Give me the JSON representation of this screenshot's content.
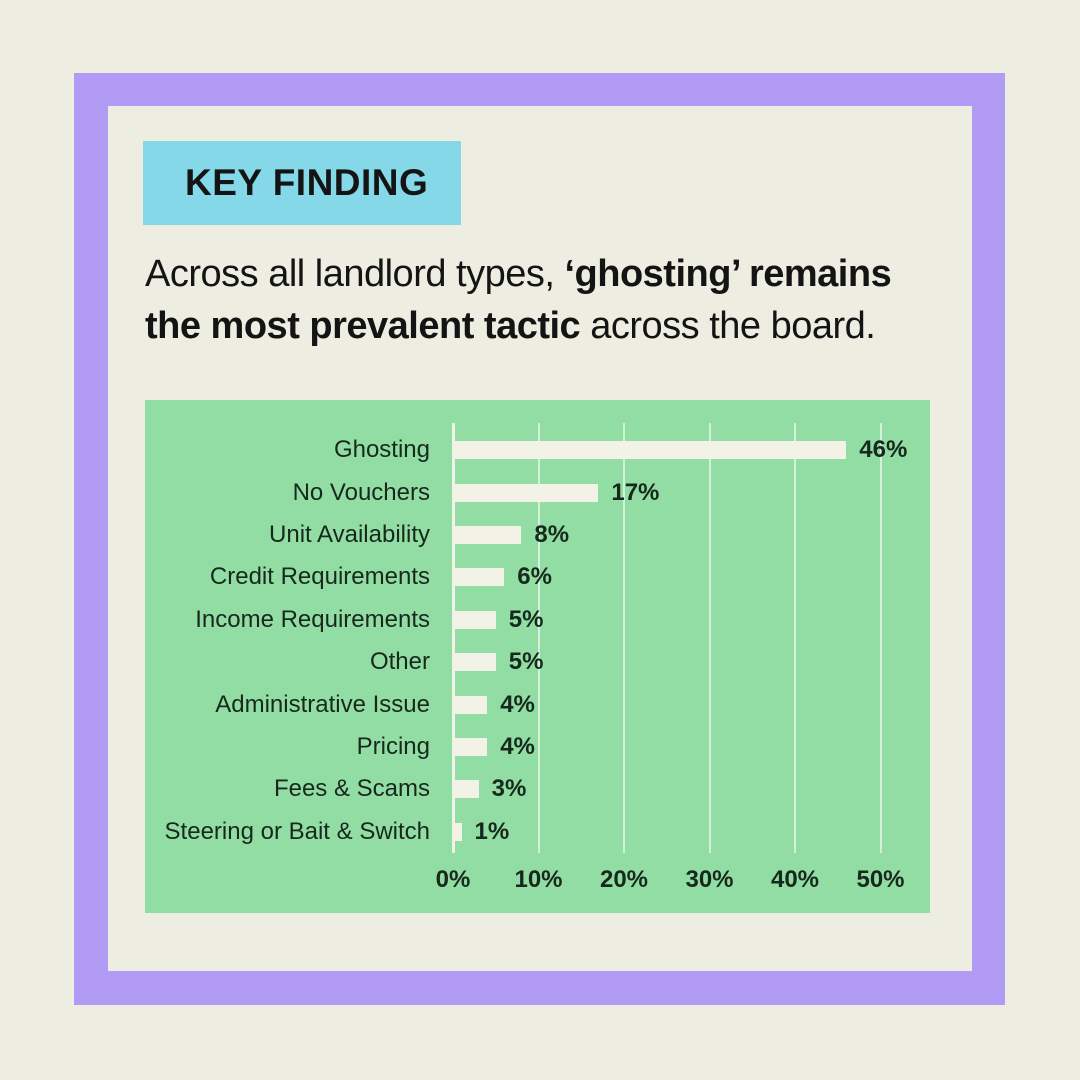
{
  "badge": {
    "label": "KEY FINDING"
  },
  "headline": {
    "line1_regular": "Across all landlord types, ",
    "line1_bold": "‘ghosting’ remains",
    "line2_bold": "the most prevalent tactic",
    "line2_regular": " across the board."
  },
  "colors": {
    "bg": "#eeede1",
    "frame": "#b29bf4",
    "badge": "#85d8e8",
    "chart-bg": "#92dda3",
    "bar": "#f3f2e6",
    "grid": "#ffffff",
    "ink": "#141414",
    "chart-ink": "#17291d"
  },
  "chart_data": {
    "type": "bar",
    "orientation": "horizontal",
    "title": "",
    "xlabel": "",
    "ylabel": "",
    "legend": "none",
    "grid": "vertical-gridlines",
    "xlim": [
      0,
      50
    ],
    "categories": [
      "Ghosting",
      "No Vouchers",
      "Unit Availability",
      "Credit Requirements",
      "Income Requirements",
      "Other",
      "Administrative Issue",
      "Pricing",
      "Fees & Scams",
      "Steering or Bait & Switch"
    ],
    "values": [
      46,
      17,
      8,
      6,
      5,
      5,
      4,
      4,
      3,
      1
    ],
    "value_labels": [
      "46%",
      "17%",
      "8%",
      "6%",
      "5%",
      "5%",
      "4%",
      "4%",
      "3%",
      "1%"
    ],
    "x_ticks": [
      "0%",
      "10%",
      "20%",
      "30%",
      "40%",
      "50%"
    ],
    "x_tick_values": [
      0,
      10,
      20,
      30,
      40,
      50
    ]
  }
}
